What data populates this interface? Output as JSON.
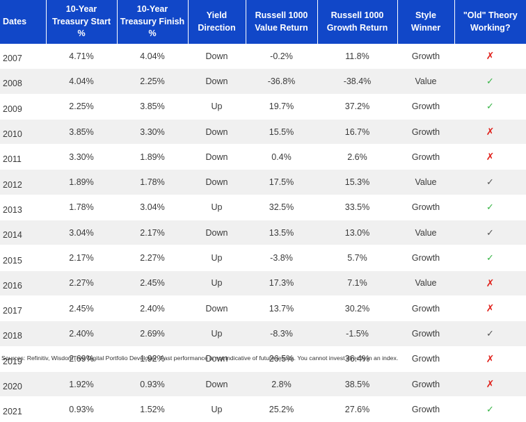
{
  "headers": [
    "Dates",
    "10-Year Treasury Start %",
    "10-Year Treasury Finish %",
    "Yield Direction",
    "Russell 1000 Value Return",
    "Russell 1000 Growth Return",
    "Style Winner",
    "\"Old\" Theory Working?"
  ],
  "marks": {
    "no": "✗",
    "yes": "✓"
  },
  "colors": {
    "header_bg": "#1147c8",
    "no": "#e0201a",
    "yes_green": "#35b444",
    "yes_gray": "#555555"
  },
  "rows": [
    {
      "date": "2007",
      "start": "4.71%",
      "finish": "4.04%",
      "direction": "Down",
      "value": "-0.2%",
      "growth": "11.8%",
      "winner": "Growth",
      "theory": "no"
    },
    {
      "date": "2008",
      "start": "4.04%",
      "finish": "2.25%",
      "direction": "Down",
      "value": "-36.8%",
      "growth": "-38.4%",
      "winner": "Value",
      "theory": "yes-green"
    },
    {
      "date": "2009",
      "start": "2.25%",
      "finish": "3.85%",
      "direction": "Up",
      "value": "19.7%",
      "growth": "37.2%",
      "winner": "Growth",
      "theory": "yes-green"
    },
    {
      "date": "2010",
      "start": "3.85%",
      "finish": "3.30%",
      "direction": "Down",
      "value": "15.5%",
      "growth": "16.7%",
      "winner": "Growth",
      "theory": "no"
    },
    {
      "date": "2011",
      "start": "3.30%",
      "finish": "1.89%",
      "direction": "Down",
      "value": "0.4%",
      "growth": "2.6%",
      "winner": "Growth",
      "theory": "no"
    },
    {
      "date": "2012",
      "start": "1.89%",
      "finish": "1.78%",
      "direction": "Down",
      "value": "17.5%",
      "growth": "15.3%",
      "winner": "Value",
      "theory": "yes-gray"
    },
    {
      "date": "2013",
      "start": "1.78%",
      "finish": "3.04%",
      "direction": "Up",
      "value": "32.5%",
      "growth": "33.5%",
      "winner": "Growth",
      "theory": "yes-green"
    },
    {
      "date": "2014",
      "start": "3.04%",
      "finish": "2.17%",
      "direction": "Down",
      "value": "13.5%",
      "growth": "13.0%",
      "winner": "Value",
      "theory": "yes-gray"
    },
    {
      "date": "2015",
      "start": "2.17%",
      "finish": "2.27%",
      "direction": "Up",
      "value": "-3.8%",
      "growth": "5.7%",
      "winner": "Growth",
      "theory": "yes-green"
    },
    {
      "date": "2016",
      "start": "2.27%",
      "finish": "2.45%",
      "direction": "Up",
      "value": "17.3%",
      "growth": "7.1%",
      "winner": "Value",
      "theory": "no"
    },
    {
      "date": "2017",
      "start": "2.45%",
      "finish": "2.40%",
      "direction": "Down",
      "value": "13.7%",
      "growth": "30.2%",
      "winner": "Growth",
      "theory": "no"
    },
    {
      "date": "2018",
      "start": "2.40%",
      "finish": "2.69%",
      "direction": "Up",
      "value": "-8.3%",
      "growth": "-1.5%",
      "winner": "Growth",
      "theory": "yes-gray"
    },
    {
      "date": "2019",
      "start": "2.69%",
      "finish": "1.92%",
      "direction": "Down",
      "value": "26.5%",
      "growth": "36.4%",
      "winner": "Growth",
      "theory": "no"
    },
    {
      "date": "2020",
      "start": "1.92%",
      "finish": "0.93%",
      "direction": "Down",
      "value": "2.8%",
      "growth": "38.5%",
      "winner": "Growth",
      "theory": "no"
    },
    {
      "date": "2021",
      "start": "0.93%",
      "finish": "1.52%",
      "direction": "Up",
      "value": "25.2%",
      "growth": "27.6%",
      "winner": "Growth",
      "theory": "yes-green"
    }
  ],
  "source": "Sources: Refinitiv, WisdomTree Digital Portfolio Developer. Past performance is not indicative of future results. You cannot invest directly in an index."
}
